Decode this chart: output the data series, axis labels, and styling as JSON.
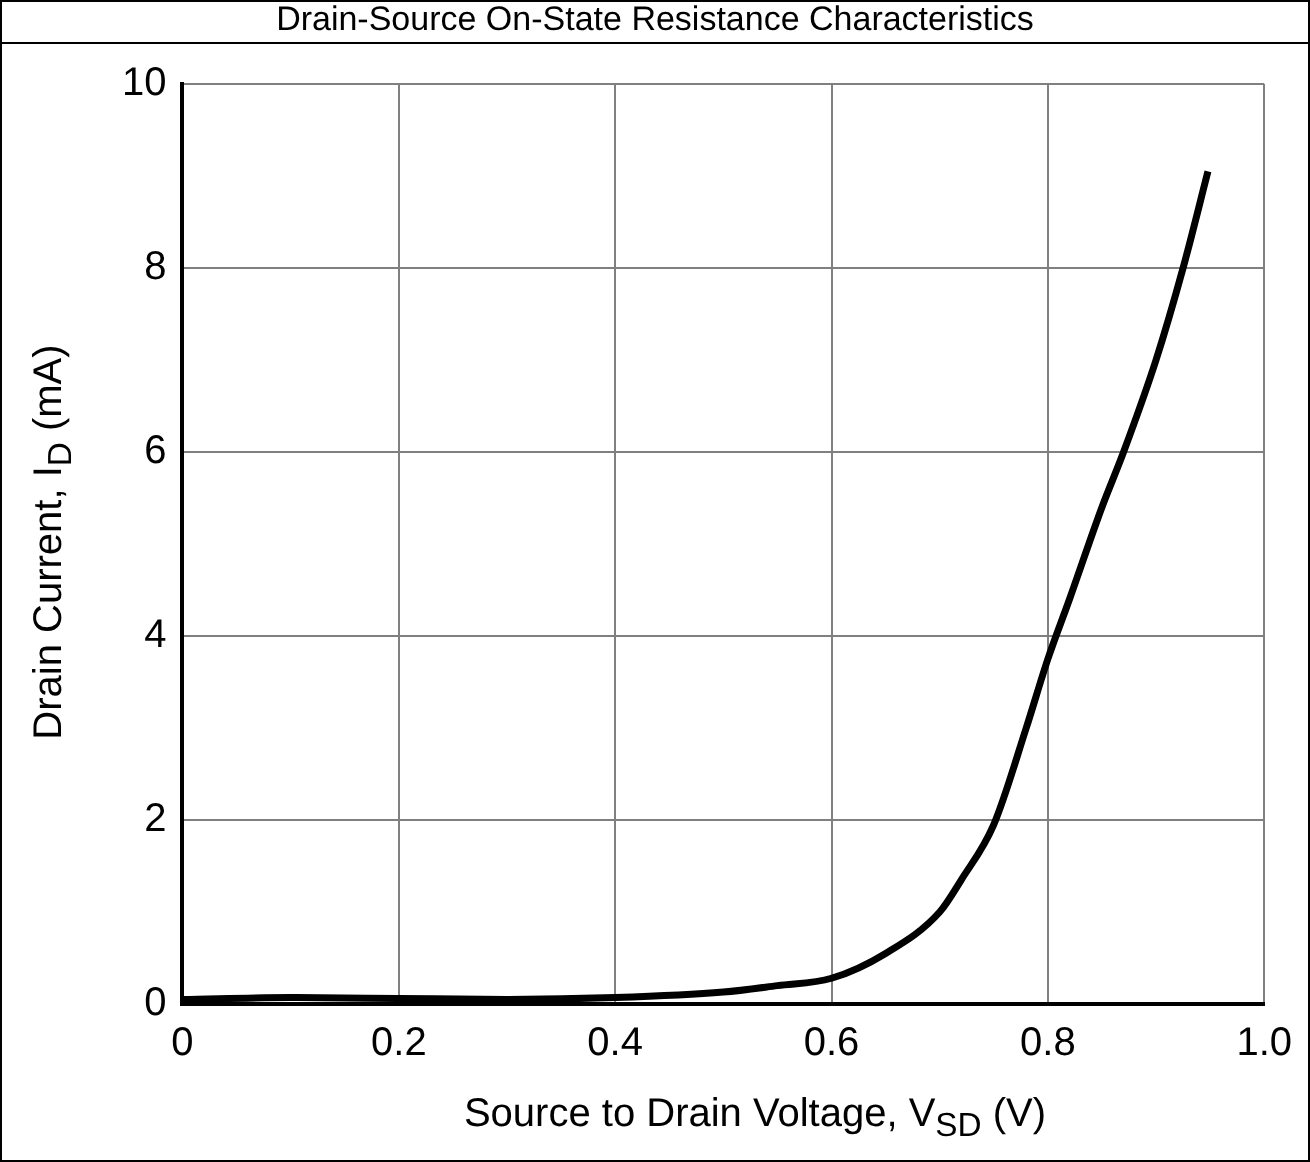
{
  "chart_data": {
    "type": "line",
    "title": "Drain-Source On-State Resistance Characteristics",
    "xlabel": "Source to Drain Voltage, V$_{SD}$ (V)",
    "ylabel": "Drain Current, I$_{D}$ (mA)",
    "x": [
      0,
      0.1,
      0.2,
      0.3,
      0.4,
      0.5,
      0.55,
      0.6,
      0.65,
      0.7,
      0.72,
      0.75,
      0.78,
      0.8,
      0.82,
      0.85,
      0.87,
      0.9,
      0.925,
      0.948
    ],
    "series": [
      {
        "color": "#000000",
        "values": [
          0.05,
          0.07,
          0.06,
          0.05,
          0.07,
          0.13,
          0.2,
          0.28,
          0.55,
          1.0,
          1.35,
          1.95,
          3.0,
          3.75,
          4.4,
          5.4,
          6.0,
          7.0,
          8.0,
          9.05
        ]
      }
    ],
    "xlim": [
      0,
      1.0
    ],
    "xticks": [
      0,
      0.2,
      0.4,
      0.6,
      0.8,
      {
        "value": 1.0,
        "label": "1.0"
      }
    ],
    "ylim": [
      0,
      10
    ],
    "yticks": [
      0,
      2,
      4,
      6,
      8,
      10
    ],
    "grid": true,
    "legend": false,
    "marker": "none",
    "line_style": "solid"
  }
}
